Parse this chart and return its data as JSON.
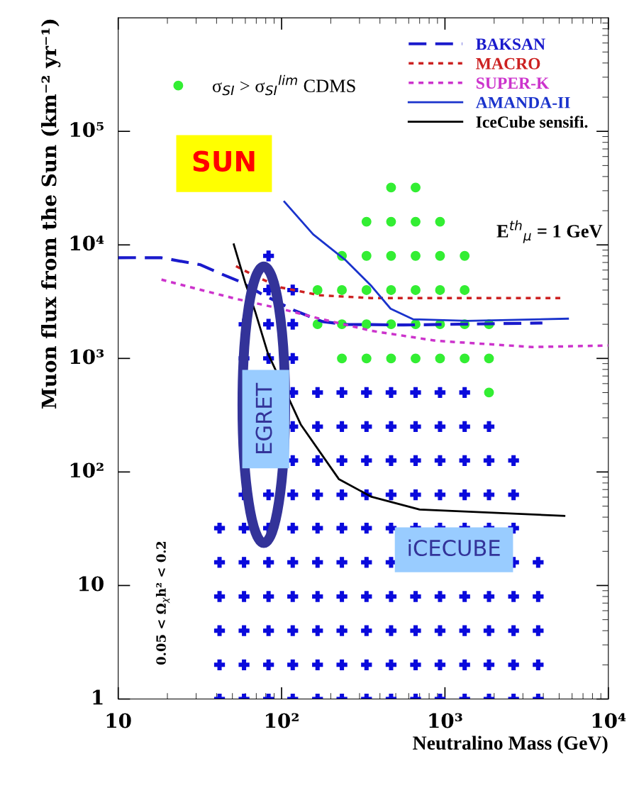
{
  "chart_data": {
    "type": "scatter",
    "xlabel": "Neutralino Mass (GeV)",
    "ylabel": "Muon flux from the Sun (km⁻² yr⁻¹)",
    "log": "xy",
    "grid": false,
    "legend": "top right",
    "xlim": [
      10,
      10000
    ],
    "xticks": [
      10,
      {
        "value": 100,
        "label": "10²"
      },
      {
        "value": 1000,
        "label": "10³"
      },
      {
        "value": 10000,
        "label": "10⁴"
      }
    ],
    "ylim": [
      1,
      1000000
    ],
    "yticks": [
      1,
      10,
      {
        "value": 100,
        "label": "10²"
      },
      {
        "value": 1000,
        "label": "10³"
      },
      {
        "value": 10000,
        "label": "10⁴"
      },
      {
        "value": 100000,
        "label": "10⁵"
      }
    ],
    "series": [
      {
        "type": "scatter",
        "marker": "cross",
        "color": "#0a0adc",
        "x": [
          41.7,
          41.7,
          41.7,
          41.7,
          41.7,
          41.7,
          58.9,
          58.9,
          58.9,
          58.9,
          58.9,
          58.9,
          58.9,
          58.9,
          58.9,
          83.2,
          83.2,
          83.2,
          83.2,
          83.2,
          83.2,
          83.2,
          83.2,
          83.2,
          83.2,
          83.2,
          117,
          117,
          117,
          117,
          117,
          117,
          117,
          117,
          117,
          117,
          117,
          117,
          117,
          166,
          166,
          166,
          166,
          166,
          166,
          166,
          166,
          166,
          166,
          234,
          234,
          234,
          234,
          234,
          234,
          234,
          234,
          234,
          234,
          331,
          331,
          331,
          331,
          331,
          331,
          331,
          331,
          331,
          331,
          468,
          468,
          468,
          468,
          468,
          468,
          468,
          468,
          468,
          468,
          661,
          661,
          661,
          661,
          661,
          661,
          661,
          661,
          661,
          933,
          933,
          933,
          933,
          933,
          933,
          933,
          933,
          933,
          1320,
          1320,
          1320,
          1320,
          1320,
          1320,
          1320,
          1320,
          1320,
          1860,
          1860,
          1860,
          1860,
          1860,
          1860,
          1860,
          1860,
          2630,
          2630,
          2630,
          2630,
          2630,
          2630,
          2630,
          2630,
          3720,
          3720,
          3720,
          3720,
          3720
        ],
        "values": [
          1,
          2,
          4,
          8,
          16,
          32,
          1,
          2,
          4,
          8,
          16,
          32,
          63,
          1000,
          2000,
          1,
          2,
          4,
          8,
          16,
          32,
          63,
          1000,
          2000,
          4000,
          8000,
          1,
          2,
          4,
          8,
          16,
          32,
          63,
          126,
          251,
          501,
          1000,
          2000,
          4000,
          1,
          2,
          4,
          8,
          16,
          32,
          63,
          126,
          251,
          501,
          1,
          2,
          4,
          8,
          16,
          32,
          63,
          126,
          251,
          501,
          1,
          2,
          4,
          8,
          16,
          32,
          63,
          126,
          251,
          501,
          1,
          2,
          4,
          8,
          16,
          32,
          63,
          126,
          251,
          501,
          1,
          2,
          4,
          8,
          32,
          63,
          126,
          251,
          501,
          1,
          2,
          4,
          8,
          32,
          63,
          126,
          251,
          501,
          1,
          2,
          4,
          8,
          32,
          63,
          126,
          251,
          501,
          1,
          2,
          4,
          8,
          32,
          63,
          126,
          251,
          1,
          2,
          4,
          8,
          16,
          32,
          63,
          126,
          1,
          2,
          4,
          8,
          16
        ]
      },
      {
        "type": "scatter",
        "marker": "circle",
        "color": "#33ee33",
        "name": "σ$_{SI}$ > σ$_{SI}$$^{lim}$ CDMS",
        "x": [
          166,
          166,
          234,
          234,
          234,
          234,
          331,
          331,
          331,
          331,
          331,
          468,
          468,
          468,
          468,
          468,
          468,
          661,
          661,
          661,
          661,
          661,
          661,
          933,
          933,
          933,
          933,
          933,
          1320,
          1320,
          1320,
          1320,
          1860,
          1860,
          1860
        ],
        "values": [
          2000,
          4000,
          1000,
          2000,
          4000,
          8000,
          1000,
          2000,
          4000,
          8000,
          16000,
          1000,
          2000,
          4000,
          8000,
          16000,
          32000,
          1000,
          2000,
          4000,
          8000,
          16000,
          32000,
          1000,
          2000,
          4000,
          8000,
          16000,
          1000,
          2000,
          4000,
          8000,
          501,
          1000,
          2000
        ]
      },
      {
        "type": "line",
        "name": "BAKSAN",
        "color": "#1a1acc",
        "line_style": "dashed",
        "x": [
          10,
          12.8,
          18.4,
          31.9,
          41.8,
          54.7,
          75.3,
          119,
          178,
          245,
          557,
          3950
        ],
        "values": [
          7700,
          7720,
          7700,
          6680,
          5620,
          4800,
          3700,
          2660,
          2110,
          1995,
          1970,
          2050
        ]
      },
      {
        "type": "line",
        "name": "MACRO",
        "color": "#cc2222",
        "line_style": "dotted",
        "x": [
          52.6,
          68.9,
          98.6,
          171,
          355,
          5380
        ],
        "values": [
          6500,
          5310,
          4220,
          3600,
          3400,
          3400
        ]
      },
      {
        "type": "line",
        "name": "SUPER-K",
        "color": "#cc33cc",
        "line_style": "dotted",
        "x": [
          18.4,
          30.3,
          52.6,
          98.6,
          178,
          355,
          881,
          3430,
          10000
        ],
        "values": [
          4940,
          4100,
          3350,
          2740,
          2210,
          1750,
          1430,
          1260,
          1300
        ]
      },
      {
        "type": "line",
        "name": "AMANDA-II",
        "color": "#1a33cc",
        "line_style": "solid",
        "x": [
          104,
          156,
          245,
          355,
          465,
          640,
          1380,
          5660
        ],
        "values": [
          24000,
          12400,
          7390,
          4340,
          2740,
          2210,
          2140,
          2240
        ]
      },
      {
        "type": "line",
        "name": "IceCube sensifi.",
        "color": "#000000",
        "line_style": "solid",
        "x": [
          51,
          59.8,
          68.9,
          82.4,
          131,
          224,
          355,
          700,
          5380
        ],
        "values": [
          10100,
          4670,
          2590,
          1110,
          262,
          86.6,
          60.4,
          46.7,
          41
        ]
      }
    ],
    "annotations": [
      "SUN",
      "E$^{th}$$_{μ}$ = 1 GeV",
      "EGRET",
      "iCECUBE",
      "0.05 < Ω$_{χ}$h² < 0.2"
    ]
  }
}
